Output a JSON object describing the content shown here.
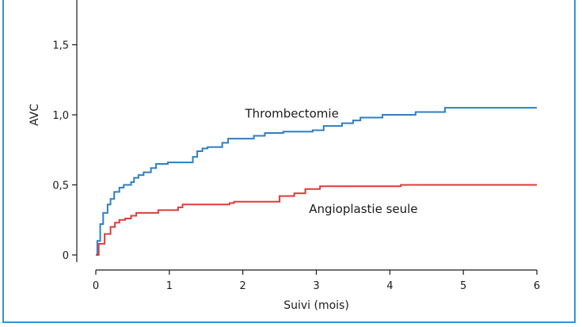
{
  "chart_data": {
    "type": "line",
    "xlabel": "Suivi (mois)",
    "ylabel": "AVC",
    "xlim": [
      0,
      6
    ],
    "ylim": [
      0,
      1.9
    ],
    "x_ticks": [
      {
        "value": 0,
        "label": "0"
      },
      {
        "value": 1,
        "label": "1"
      },
      {
        "value": 2,
        "label": "2"
      },
      {
        "value": 3,
        "label": "3"
      },
      {
        "value": 4,
        "label": "4"
      },
      {
        "value": 5,
        "label": "5"
      },
      {
        "value": 6,
        "label": "6"
      }
    ],
    "y_ticks": [
      {
        "value": 0,
        "label": "0"
      },
      {
        "value": 0.5,
        "label": "0,5"
      },
      {
        "value": 1.0,
        "label": "1,0"
      },
      {
        "value": 1.5,
        "label": "1,5"
      }
    ],
    "grid": false,
    "series": [
      {
        "name": "Thrombectomie",
        "color": "#2f7fc1",
        "step": true,
        "label_at": [
          2.03,
          0.98
        ],
        "points": [
          [
            0,
            0
          ],
          [
            0.02,
            0.1
          ],
          [
            0.06,
            0.22
          ],
          [
            0.1,
            0.3
          ],
          [
            0.16,
            0.36
          ],
          [
            0.2,
            0.4
          ],
          [
            0.25,
            0.45
          ],
          [
            0.32,
            0.48
          ],
          [
            0.38,
            0.5
          ],
          [
            0.48,
            0.52
          ],
          [
            0.52,
            0.55
          ],
          [
            0.58,
            0.57
          ],
          [
            0.65,
            0.59
          ],
          [
            0.75,
            0.62
          ],
          [
            0.82,
            0.65
          ],
          [
            0.98,
            0.66
          ],
          [
            1.32,
            0.7
          ],
          [
            1.38,
            0.74
          ],
          [
            1.45,
            0.76
          ],
          [
            1.52,
            0.77
          ],
          [
            1.72,
            0.8
          ],
          [
            1.8,
            0.83
          ],
          [
            2.15,
            0.85
          ],
          [
            2.3,
            0.87
          ],
          [
            2.55,
            0.88
          ],
          [
            2.95,
            0.89
          ],
          [
            3.1,
            0.92
          ],
          [
            3.35,
            0.94
          ],
          [
            3.5,
            0.96
          ],
          [
            3.6,
            0.98
          ],
          [
            3.9,
            1.0
          ],
          [
            4.35,
            1.02
          ],
          [
            4.75,
            1.05
          ],
          [
            6.0,
            1.05
          ]
        ]
      },
      {
        "name": "Angioplastie seule",
        "color": "#e03a3a",
        "step": true,
        "label_at": [
          2.9,
          0.3
        ],
        "points": [
          [
            0,
            0
          ],
          [
            0.04,
            0.08
          ],
          [
            0.12,
            0.15
          ],
          [
            0.2,
            0.2
          ],
          [
            0.26,
            0.23
          ],
          [
            0.32,
            0.25
          ],
          [
            0.4,
            0.26
          ],
          [
            0.48,
            0.28
          ],
          [
            0.55,
            0.3
          ],
          [
            0.85,
            0.32
          ],
          [
            1.12,
            0.34
          ],
          [
            1.18,
            0.36
          ],
          [
            1.82,
            0.37
          ],
          [
            1.88,
            0.38
          ],
          [
            2.5,
            0.42
          ],
          [
            2.7,
            0.44
          ],
          [
            2.85,
            0.47
          ],
          [
            3.05,
            0.49
          ],
          [
            4.15,
            0.5
          ],
          [
            6.0,
            0.5
          ]
        ]
      }
    ]
  }
}
